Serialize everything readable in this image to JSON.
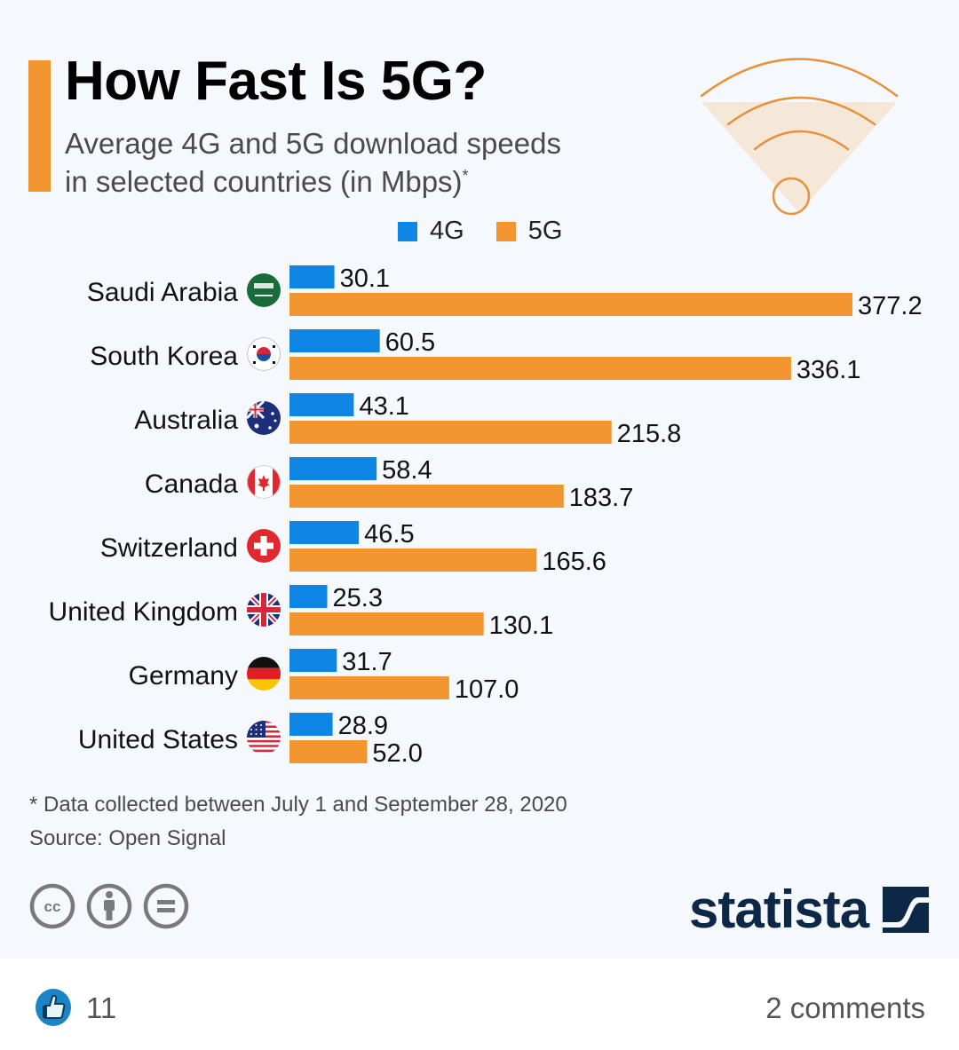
{
  "header": {
    "title": "How Fast Is 5G?",
    "subtitle_line1": "Average 4G and 5G download speeds",
    "subtitle_line2": "in selected countries (in Mbps)",
    "subtitle_mark": "*"
  },
  "colors": {
    "accent": "#f29530",
    "series_4g": "#0f86e3",
    "series_5g": "#f29530",
    "logo": "#0d2847",
    "background": "#f5f9fd"
  },
  "chart_data": {
    "type": "bar",
    "orientation": "horizontal",
    "title": "How Fast Is 5G?",
    "subtitle": "Average 4G and 5G download speeds in selected countries (in Mbps)*",
    "xlabel": "",
    "ylabel": "",
    "unit": "Mbps",
    "xlim": [
      0,
      377.2
    ],
    "grid": false,
    "legend_position": "top",
    "categories": [
      "Saudi Arabia",
      "South Korea",
      "Australia",
      "Canada",
      "Switzerland",
      "United Kingdom",
      "Germany",
      "United States"
    ],
    "flags": [
      "saudi-arabia-flag-icon",
      "south-korea-flag-icon",
      "australia-flag-icon",
      "canada-flag-icon",
      "switzerland-flag-icon",
      "united-kingdom-flag-icon",
      "germany-flag-icon",
      "united-states-flag-icon"
    ],
    "series": [
      {
        "name": "4G",
        "color": "#0f86e3",
        "values": [
          30.1,
          60.5,
          43.1,
          58.4,
          46.5,
          25.3,
          31.7,
          28.9
        ],
        "labels": [
          "30.1",
          "60.5",
          "43.1",
          "58.4",
          "46.5",
          "25.3",
          "31.7",
          "28.9"
        ]
      },
      {
        "name": "5G",
        "color": "#f29530",
        "values": [
          377.2,
          336.1,
          215.8,
          183.7,
          165.6,
          130.1,
          107.0,
          52.0
        ],
        "labels": [
          "377.2",
          "336.1",
          "215.8",
          "183.7",
          "165.6",
          "130.1",
          "107.0",
          "52.0"
        ]
      }
    ]
  },
  "legend": {
    "items": [
      {
        "label": "4G",
        "color": "#0f86e3"
      },
      {
        "label": "5G",
        "color": "#f29530"
      }
    ]
  },
  "footer": {
    "footnote": "* Data collected between July 1 and September 28, 2020",
    "source": "Source: Open Signal",
    "license_icons": [
      "cc-icon",
      "attribution-icon",
      "no-derivatives-icon"
    ],
    "logo_text": "statista"
  },
  "social": {
    "likes": "11",
    "comments": "2 comments"
  }
}
